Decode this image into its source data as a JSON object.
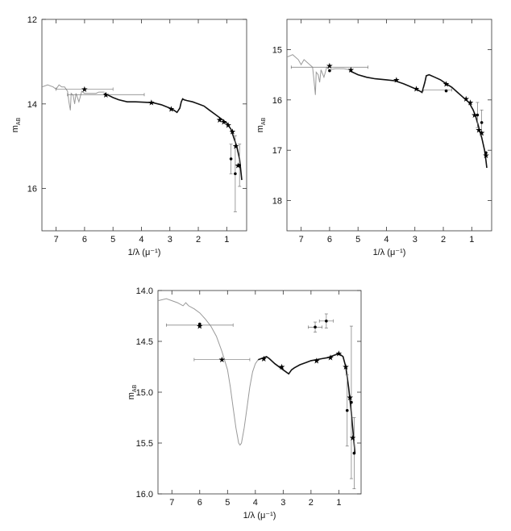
{
  "chart_data": [
    {
      "type": "line",
      "xlabel": "1/λ (μ⁻¹)",
      "ylabel": "m",
      "ylabel_sub": "AB",
      "xlim": [
        7.5,
        0.3
      ],
      "ylim": [
        17.0,
        12.0
      ],
      "xticks": [
        7,
        6,
        5,
        4,
        3,
        2,
        1
      ],
      "yticks": [
        12,
        14,
        16
      ],
      "grid": false,
      "legend": "none",
      "model_gray": [
        [
          7.5,
          13.6
        ],
        [
          7.3,
          13.55
        ],
        [
          7.1,
          13.6
        ],
        [
          7.0,
          13.65
        ],
        [
          6.9,
          13.55
        ],
        [
          6.8,
          13.6
        ],
        [
          6.7,
          13.6
        ],
        [
          6.6,
          13.7
        ],
        [
          6.55,
          13.95
        ],
        [
          6.5,
          14.15
        ],
        [
          6.47,
          13.75
        ],
        [
          6.4,
          13.8
        ],
        [
          6.35,
          14.0
        ],
        [
          6.3,
          13.75
        ],
        [
          6.2,
          13.95
        ],
        [
          6.1,
          13.7
        ],
        [
          6.0,
          13.75
        ],
        [
          5.9,
          13.75
        ],
        [
          5.6,
          13.75
        ],
        [
          5.5,
          13.72
        ],
        [
          5.3,
          13.72
        ]
      ],
      "model_black": [
        [
          5.3,
          13.75
        ],
        [
          5.0,
          13.85
        ],
        [
          4.8,
          13.9
        ],
        [
          4.5,
          13.95
        ],
        [
          4.2,
          13.95
        ],
        [
          3.9,
          13.96
        ],
        [
          3.6,
          13.97
        ],
        [
          3.3,
          14.02
        ],
        [
          3.0,
          14.1
        ],
        [
          2.85,
          14.15
        ],
        [
          2.75,
          14.2
        ],
        [
          2.65,
          14.1
        ],
        [
          2.6,
          13.95
        ],
        [
          2.55,
          13.88
        ],
        [
          2.5,
          13.9
        ],
        [
          2.4,
          13.92
        ],
        [
          2.2,
          13.95
        ],
        [
          2.0,
          14.0
        ],
        [
          1.8,
          14.05
        ],
        [
          1.6,
          14.15
        ],
        [
          1.4,
          14.25
        ],
        [
          1.2,
          14.35
        ],
        [
          1.0,
          14.45
        ],
        [
          0.85,
          14.6
        ],
        [
          0.75,
          14.8
        ],
        [
          0.65,
          15.0
        ],
        [
          0.55,
          15.3
        ],
        [
          0.5,
          15.6
        ],
        [
          0.47,
          15.8
        ]
      ],
      "points_star": [
        [
          6.0,
          13.65
        ],
        [
          5.25,
          13.78
        ],
        [
          3.65,
          13.97
        ],
        [
          2.95,
          14.12
        ],
        [
          1.25,
          14.38
        ],
        [
          1.1,
          14.42
        ],
        [
          0.95,
          14.5
        ],
        [
          0.8,
          14.65
        ],
        [
          0.68,
          15.0
        ],
        [
          0.6,
          15.45
        ]
      ],
      "points_dot": [
        [
          0.85,
          15.3
        ],
        [
          0.7,
          15.65
        ],
        [
          0.55,
          15.45
        ]
      ],
      "xerr": [
        [
          6.0,
          13.65,
          1.0
        ],
        [
          5.25,
          13.78,
          1.35
        ]
      ],
      "yerr": [
        [
          0.85,
          15.3,
          0.35
        ],
        [
          0.7,
          15.65,
          0.9
        ],
        [
          0.55,
          15.45,
          0.5
        ]
      ]
    },
    {
      "type": "line",
      "xlabel": "1/λ (μ⁻¹)",
      "ylabel": "m",
      "ylabel_sub": "AB",
      "xlim": [
        7.5,
        0.3
      ],
      "ylim": [
        18.6,
        14.4
      ],
      "xticks": [
        7,
        6,
        5,
        4,
        3,
        2,
        1
      ],
      "yticks": [
        15,
        16,
        17,
        18
      ],
      "grid": false,
      "legend": "none",
      "model_gray": [
        [
          7.5,
          15.15
        ],
        [
          7.3,
          15.1
        ],
        [
          7.1,
          15.2
        ],
        [
          7.0,
          15.3
        ],
        [
          6.9,
          15.2
        ],
        [
          6.8,
          15.25
        ],
        [
          6.6,
          15.35
        ],
        [
          6.55,
          15.6
        ],
        [
          6.5,
          15.9
        ],
        [
          6.47,
          15.45
        ],
        [
          6.4,
          15.5
        ],
        [
          6.35,
          15.65
        ],
        [
          6.3,
          15.4
        ],
        [
          6.2,
          15.55
        ],
        [
          6.1,
          15.35
        ],
        [
          6.0,
          15.4
        ],
        [
          5.8,
          15.38
        ],
        [
          5.5,
          15.38
        ],
        [
          5.3,
          15.4
        ]
      ],
      "model_black": [
        [
          5.3,
          15.42
        ],
        [
          5.0,
          15.5
        ],
        [
          4.7,
          15.55
        ],
        [
          4.4,
          15.58
        ],
        [
          4.0,
          15.6
        ],
        [
          3.7,
          15.62
        ],
        [
          3.4,
          15.68
        ],
        [
          3.1,
          15.75
        ],
        [
          2.9,
          15.8
        ],
        [
          2.75,
          15.85
        ],
        [
          2.65,
          15.65
        ],
        [
          2.6,
          15.52
        ],
        [
          2.5,
          15.5
        ],
        [
          2.3,
          15.55
        ],
        [
          2.1,
          15.6
        ],
        [
          1.9,
          15.68
        ],
        [
          1.7,
          15.75
        ],
        [
          1.5,
          15.85
        ],
        [
          1.3,
          15.95
        ],
        [
          1.1,
          16.05
        ],
        [
          0.95,
          16.2
        ],
        [
          0.85,
          16.35
        ],
        [
          0.75,
          16.55
        ],
        [
          0.65,
          16.75
        ],
        [
          0.55,
          17.0
        ],
        [
          0.5,
          17.2
        ],
        [
          0.47,
          17.35
        ]
      ],
      "points_star": [
        [
          6.0,
          15.32
        ],
        [
          5.25,
          15.4
        ],
        [
          3.65,
          15.6
        ],
        [
          2.95,
          15.78
        ],
        [
          1.9,
          15.68
        ],
        [
          1.2,
          15.98
        ],
        [
          1.05,
          16.05
        ],
        [
          0.9,
          16.3
        ],
        [
          0.75,
          16.6
        ],
        [
          0.65,
          16.65
        ],
        [
          0.5,
          17.1
        ]
      ],
      "points_dot": [
        [
          6.0,
          15.42
        ],
        [
          1.9,
          15.82
        ],
        [
          0.8,
          16.3
        ],
        [
          0.65,
          16.45
        ],
        [
          0.5,
          17.05
        ]
      ],
      "xerr": [
        [
          6.0,
          15.35,
          1.35
        ],
        [
          2.2,
          15.8,
          0.5
        ]
      ],
      "yerr": [
        [
          0.8,
          16.3,
          0.25
        ],
        [
          0.65,
          16.45,
          0.25
        ]
      ]
    },
    {
      "type": "line",
      "xlabel": "1/λ (μ⁻¹)",
      "ylabel": "m",
      "ylabel_sub": "AB",
      "xlim": [
        7.5,
        0.2
      ],
      "ylim": [
        16.0,
        14.0
      ],
      "xticks": [
        7,
        6,
        5,
        4,
        3,
        2,
        1
      ],
      "yticks": [
        "14.0",
        "14.5",
        "15.0",
        "15.5",
        "16.0"
      ],
      "ytick_values": [
        14.0,
        14.5,
        15.0,
        15.5,
        16.0
      ],
      "grid": false,
      "legend": "none",
      "model_gray": [
        [
          7.5,
          14.1
        ],
        [
          7.2,
          14.08
        ],
        [
          7.0,
          14.1
        ],
        [
          6.8,
          14.12
        ],
        [
          6.6,
          14.15
        ],
        [
          6.5,
          14.12
        ],
        [
          6.4,
          14.15
        ],
        [
          6.2,
          14.18
        ],
        [
          6.0,
          14.22
        ],
        [
          5.8,
          14.28
        ],
        [
          5.6,
          14.35
        ],
        [
          5.4,
          14.45
        ],
        [
          5.2,
          14.6
        ],
        [
          5.0,
          14.78
        ],
        [
          4.9,
          14.95
        ],
        [
          4.8,
          15.15
        ],
        [
          4.7,
          15.35
        ],
        [
          4.6,
          15.5
        ],
        [
          4.55,
          15.52
        ],
        [
          4.5,
          15.5
        ],
        [
          4.4,
          15.35
        ],
        [
          4.3,
          15.15
        ],
        [
          4.2,
          14.95
        ],
        [
          4.1,
          14.8
        ],
        [
          4.0,
          14.72
        ],
        [
          3.9,
          14.68
        ]
      ],
      "model_black": [
        [
          3.9,
          14.68
        ],
        [
          3.7,
          14.66
        ],
        [
          3.6,
          14.65
        ],
        [
          3.5,
          14.67
        ],
        [
          3.3,
          14.72
        ],
        [
          3.1,
          14.76
        ],
        [
          2.9,
          14.8
        ],
        [
          2.8,
          14.82
        ],
        [
          2.7,
          14.78
        ],
        [
          2.6,
          14.76
        ],
        [
          2.4,
          14.73
        ],
        [
          2.2,
          14.71
        ],
        [
          2.0,
          14.69
        ],
        [
          1.8,
          14.68
        ],
        [
          1.6,
          14.67
        ],
        [
          1.4,
          14.66
        ],
        [
          1.2,
          14.64
        ],
        [
          1.0,
          14.62
        ],
        [
          0.85,
          14.65
        ],
        [
          0.75,
          14.75
        ],
        [
          0.65,
          14.95
        ],
        [
          0.55,
          15.2
        ],
        [
          0.47,
          15.45
        ],
        [
          0.42,
          15.6
        ]
      ],
      "points_star": [
        [
          6.0,
          14.35
        ],
        [
          5.2,
          14.68
        ],
        [
          3.7,
          14.67
        ],
        [
          3.05,
          14.75
        ],
        [
          1.8,
          14.69
        ],
        [
          1.3,
          14.66
        ],
        [
          1.0,
          14.62
        ],
        [
          0.75,
          14.75
        ],
        [
          0.6,
          15.05
        ],
        [
          0.5,
          15.45
        ]
      ],
      "points_dot": [
        [
          6.0,
          14.33
        ],
        [
          1.85,
          14.36
        ],
        [
          1.45,
          14.3
        ],
        [
          0.7,
          15.18
        ],
        [
          0.55,
          15.1
        ],
        [
          0.45,
          15.6
        ]
      ],
      "xerr": [
        [
          6.0,
          14.34,
          1.2
        ],
        [
          5.2,
          14.68,
          1.0
        ],
        [
          1.85,
          14.36,
          0.25
        ],
        [
          1.45,
          14.3,
          0.25
        ]
      ],
      "yerr": [
        [
          1.85,
          14.36,
          0.05
        ],
        [
          1.45,
          14.3,
          0.07
        ],
        [
          0.7,
          15.18,
          0.35
        ],
        [
          0.55,
          15.1,
          0.75
        ],
        [
          0.45,
          15.6,
          0.35
        ]
      ]
    }
  ]
}
